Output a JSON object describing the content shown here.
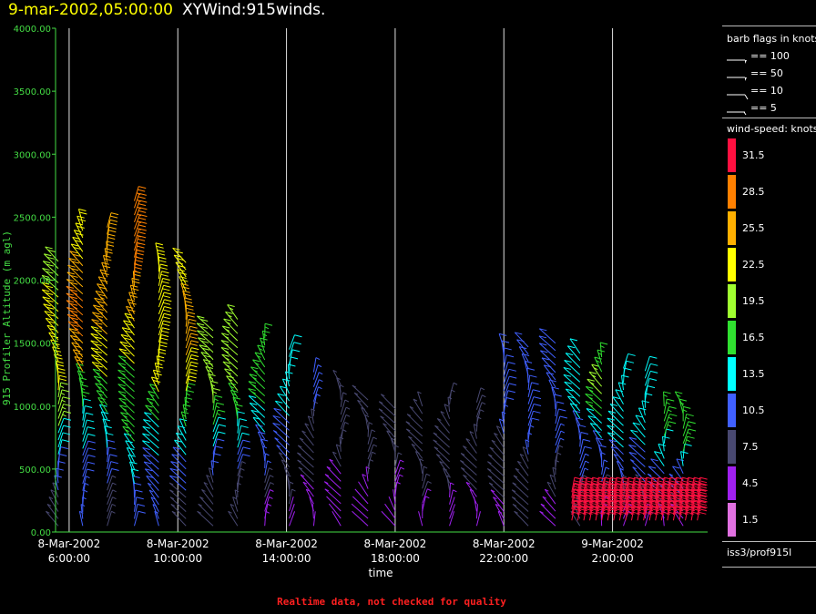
{
  "header": {
    "date": "9-mar-2002,05:00:00",
    "title": "XYWind:915winds."
  },
  "footer": "Realtime data, not checked for quality",
  "station": "iss3/prof915l",
  "colors": {
    "axis": "#44dd44",
    "grid": "#e0e0e0",
    "title_date": "#ffff00",
    "footer": "#ff2020"
  },
  "legend": {
    "barb_title": "barb flags in knots",
    "barbs": [
      {
        "label": "== 100",
        "kind": "flag"
      },
      {
        "label": "== 50",
        "kind": "flag"
      },
      {
        "label": "== 10",
        "kind": "full"
      },
      {
        "label": "== 5",
        "kind": "half"
      }
    ],
    "speed_title": "wind-speed: knots",
    "speed_bins": [
      {
        "label": "31.5",
        "color": "#ff1040"
      },
      {
        "label": "28.5",
        "color": "#ff8000"
      },
      {
        "label": "25.5",
        "color": "#ffb000"
      },
      {
        "label": "22.5",
        "color": "#ffff00"
      },
      {
        "label": "19.5",
        "color": "#a0ff30"
      },
      {
        "label": "16.5",
        "color": "#30e030"
      },
      {
        "label": "13.5",
        "color": "#00ffff"
      },
      {
        "label": "10.5",
        "color": "#4060ff"
      },
      {
        "label": "7.5",
        "color": "#484870"
      },
      {
        "label": "4.5",
        "color": "#a020f0"
      },
      {
        "label": "1.5",
        "color": "#e070e0"
      }
    ]
  },
  "chart_data": {
    "type": "wind-barb profile",
    "xlabel": "time",
    "ylabel": "915 Profiler Altitude (m agl)",
    "y_ticks": [
      "0.00",
      "500.00",
      "1000.00",
      "1500.00",
      "2000.00",
      "2500.00",
      "3000.00",
      "3500.00",
      "4000.00"
    ],
    "ylim": [
      0,
      4000
    ],
    "x_hours_range": [
      5.5,
      29.5
    ],
    "x_ticks": [
      {
        "hour": 6,
        "date": "8-Mar-2002",
        "time": "6:00:00"
      },
      {
        "hour": 10,
        "date": "8-Mar-2002",
        "time": "10:00:00"
      },
      {
        "hour": 14,
        "date": "8-Mar-2002",
        "time": "14:00:00"
      },
      {
        "hour": 18,
        "date": "8-Mar-2002",
        "time": "18:00:00"
      },
      {
        "hour": 22,
        "date": "8-Mar-2002",
        "time": "22:00:00"
      },
      {
        "hour": 26,
        "date": "9-Mar-2002",
        "time": "2:00:00"
      }
    ],
    "grid_vertical": true,
    "profiles": [
      {
        "hour": 5.6,
        "top": 2250,
        "speeds": [
          8,
          10,
          13,
          18,
          22,
          22,
          21,
          20
        ]
      },
      {
        "hour": 6.5,
        "top": 2550,
        "speeds": [
          9,
          11,
          14,
          17,
          24,
          27,
          24,
          23
        ]
      },
      {
        "hour": 7.4,
        "top": 2520,
        "speeds": [
          8,
          10,
          14,
          17,
          22,
          25,
          24,
          24
        ]
      },
      {
        "hour": 8.4,
        "top": 2730,
        "speeds": [
          10,
          12,
          15,
          16,
          21,
          24,
          28,
          28
        ]
      },
      {
        "hour": 9.3,
        "top": 2280,
        "speeds": [
          9,
          11,
          13,
          15,
          22,
          23,
          22,
          22
        ]
      },
      {
        "hour": 10.3,
        "top": 2240,
        "speeds": [
          8,
          10,
          13,
          15,
          21,
          24,
          24,
          23
        ]
      },
      {
        "hour": 11.3,
        "top": 1700,
        "speeds": [
          6,
          8,
          11,
          13,
          16,
          19,
          20,
          20
        ]
      },
      {
        "hour": 12.2,
        "top": 1790,
        "speeds": [
          6,
          8,
          10,
          13,
          15,
          18,
          19,
          18
        ]
      },
      {
        "hour": 13.2,
        "top": 1640,
        "speeds": [
          5,
          7,
          9,
          11,
          13,
          15,
          16,
          16
        ]
      },
      {
        "hour": 14.1,
        "top": 1550,
        "speeds": [
          4,
          6,
          7,
          9,
          11,
          12,
          13,
          13
        ]
      },
      {
        "hour": 15.0,
        "top": 1370,
        "speeds": [
          4,
          5,
          6,
          7,
          8,
          8,
          9,
          9
        ]
      },
      {
        "hour": 16.0,
        "top": 1270,
        "speeds": [
          4,
          5,
          5,
          6,
          7,
          7,
          8,
          8
        ]
      },
      {
        "hour": 17.0,
        "top": 1150,
        "speeds": [
          3,
          4,
          5,
          6,
          6,
          7,
          7,
          7
        ]
      },
      {
        "hour": 18.0,
        "top": 1080,
        "speeds": [
          3,
          4,
          5,
          5,
          6,
          7,
          7,
          7
        ]
      },
      {
        "hour": 19.0,
        "top": 1100,
        "speeds": [
          4,
          5,
          6,
          6,
          7,
          7,
          8,
          8
        ]
      },
      {
        "hour": 20.0,
        "top": 1170,
        "speeds": [
          4,
          5,
          6,
          7,
          7,
          8,
          8,
          8
        ]
      },
      {
        "hour": 21.0,
        "top": 1130,
        "speeds": [
          4,
          5,
          6,
          7,
          8,
          8,
          8,
          8
        ]
      },
      {
        "hour": 22.0,
        "top": 1560,
        "speeds": [
          5,
          6,
          7,
          8,
          9,
          10,
          10,
          10
        ]
      },
      {
        "hour": 22.9,
        "top": 1570,
        "speeds": [
          6,
          7,
          8,
          9,
          10,
          10,
          10,
          10
        ]
      },
      {
        "hour": 23.9,
        "top": 1600,
        "speeds": [
          5,
          6,
          8,
          9,
          10,
          11,
          11,
          11
        ]
      },
      {
        "hour": 24.8,
        "top": 1520,
        "speeds": [
          6,
          8,
          9,
          10,
          11,
          12,
          12,
          12
        ]
      },
      {
        "hour": 25.6,
        "top": 1490,
        "speeds": [
          5,
          7,
          9,
          11,
          13,
          16,
          18,
          17
        ]
      },
      {
        "hour": 26.4,
        "top": 1400,
        "speeds": [
          5,
          7,
          9,
          11,
          13,
          14,
          14,
          14
        ]
      },
      {
        "hour": 27.2,
        "top": 1380,
        "speeds": [
          5,
          7,
          9,
          11,
          12,
          13,
          13,
          13
        ]
      },
      {
        "hour": 27.9,
        "top": 1100,
        "speeds": [
          5,
          7,
          9,
          11,
          13,
          14,
          16,
          16
        ]
      },
      {
        "hour": 28.6,
        "top": 1100,
        "speeds": [
          5,
          7,
          9,
          11,
          13,
          15,
          17,
          17
        ]
      }
    ],
    "low_level_jet": {
      "hour_start": 24.5,
      "hour_end": 29.3,
      "alt_min": 150,
      "alt_max": 380,
      "speed": 31
    }
  }
}
